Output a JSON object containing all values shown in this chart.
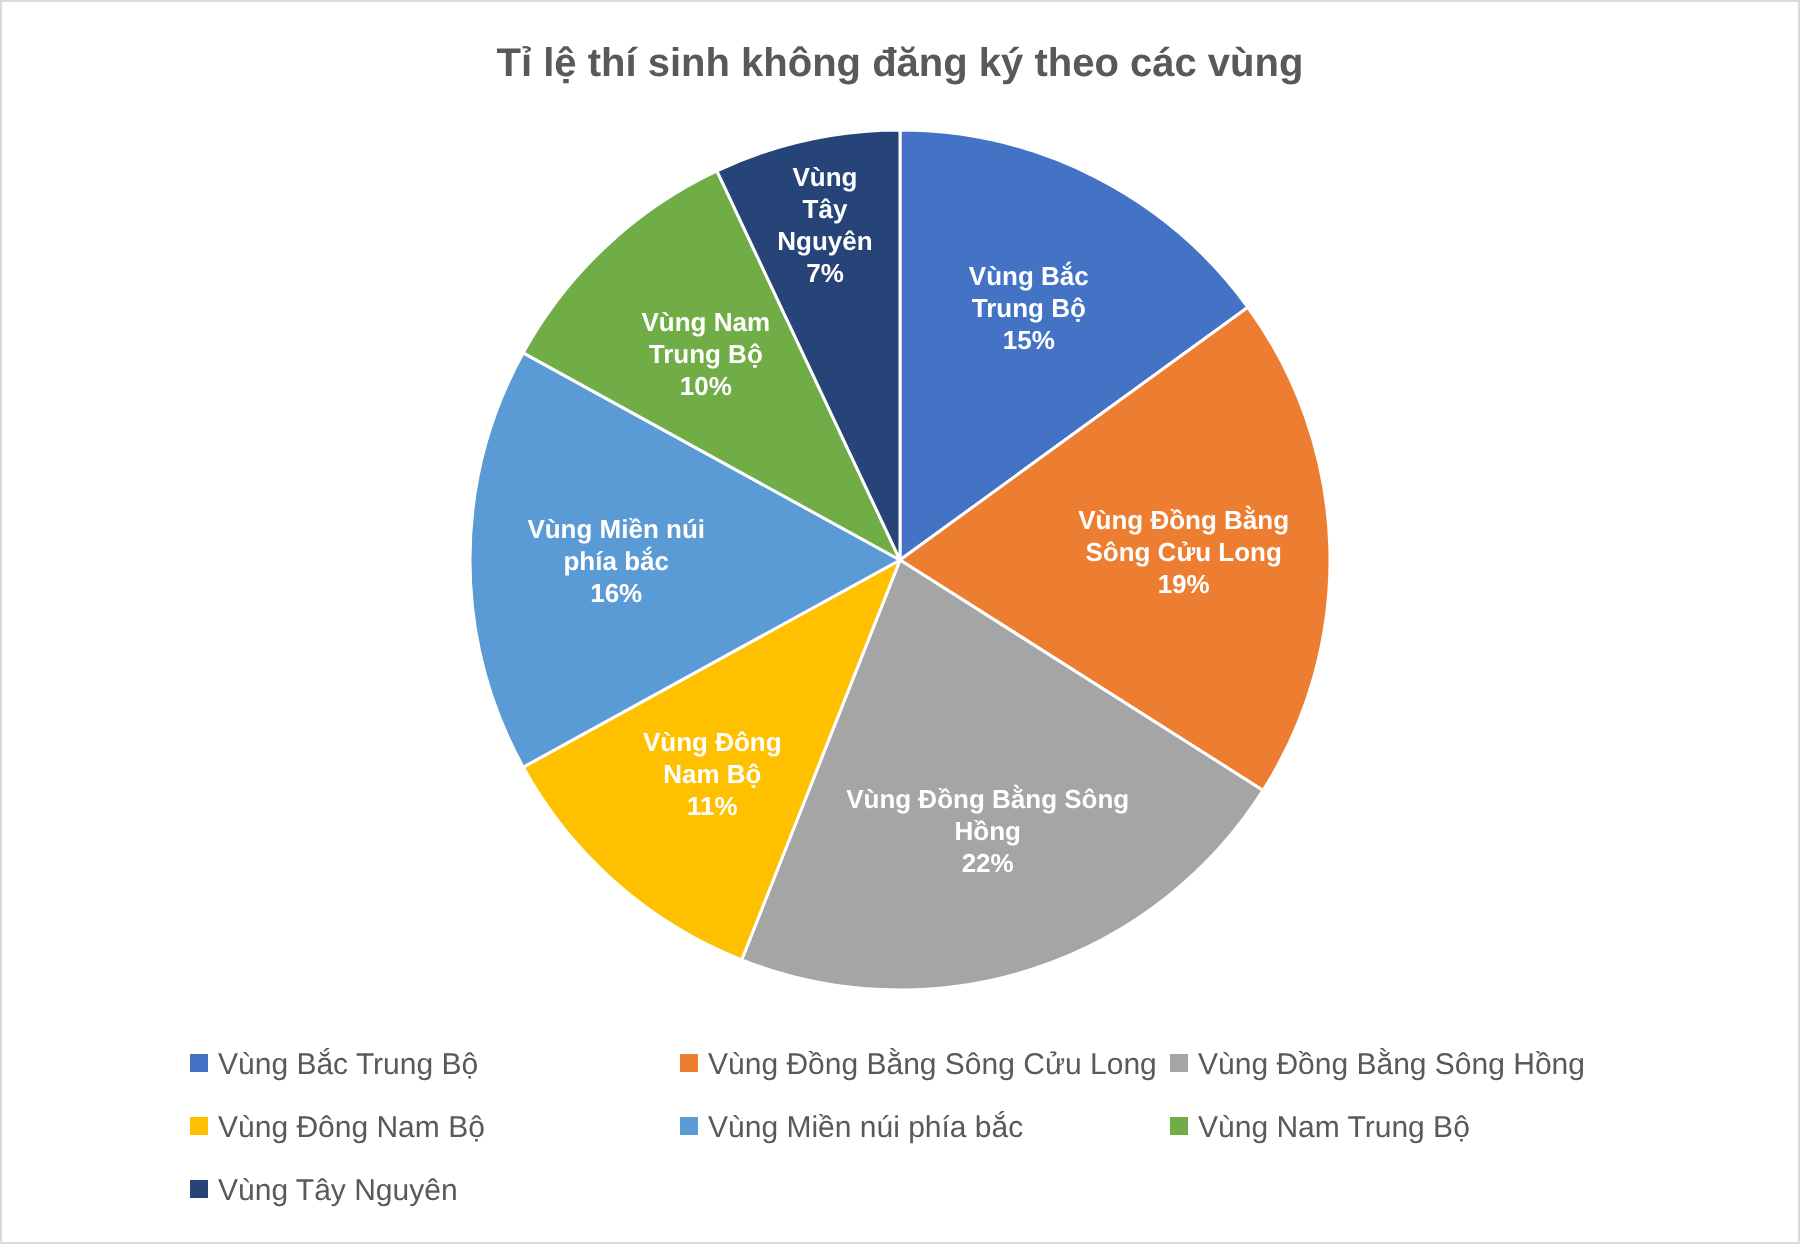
{
  "chart_data": {
    "type": "pie",
    "title": "Tỉ lệ thí sinh không đăng ký theo các vùng",
    "categories": [
      "Vùng Bắc Trung Bộ",
      "Vùng Đồng Bằng Sông Cửu Long",
      "Vùng Đồng Bằng Sông Hồng",
      "Vùng Đông Nam Bộ",
      "Vùng Miền núi phía bắc",
      "Vùng Nam Trung Bộ",
      "Vùng Tây Nguyên"
    ],
    "values": [
      15,
      19,
      22,
      11,
      16,
      10,
      7
    ],
    "value_labels": [
      "15%",
      "19%",
      "22%",
      "11%",
      "16%",
      "10%",
      "7%"
    ],
    "colors": [
      "#4472c4",
      "#ed7d31",
      "#a5a5a5",
      "#ffc000",
      "#5b9bd5",
      "#70ad47",
      "#264478"
    ],
    "legend": "bottom"
  }
}
